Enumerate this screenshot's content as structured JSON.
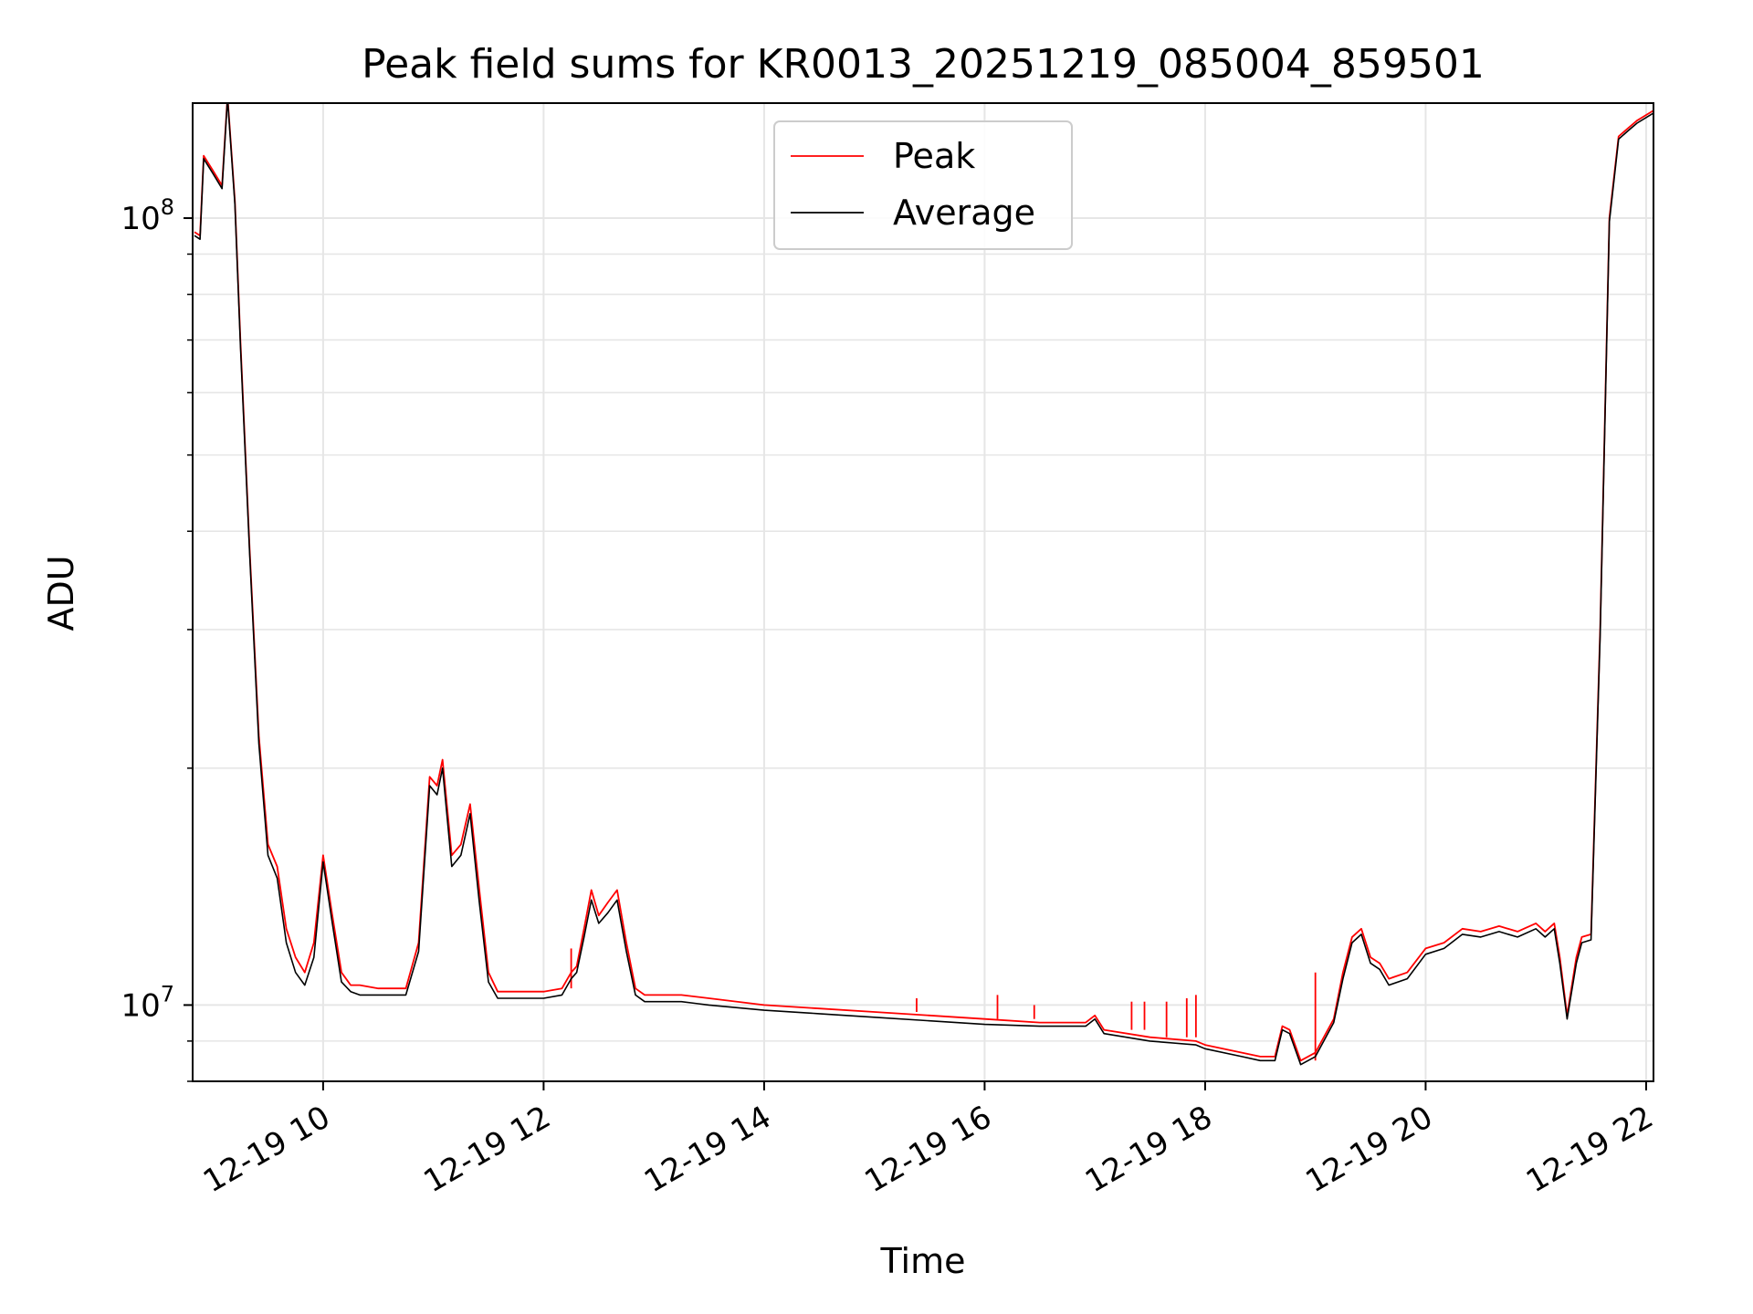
{
  "chart_data": {
    "type": "line",
    "title": "Peak field sums for KR0013_20251219_085004_859501",
    "xlabel": "Time",
    "ylabel": "ADU",
    "y_scale": "log",
    "ylim": [
      8000000,
      140000000
    ],
    "xlim": [
      "2025-12-19 08:49",
      "2025-12-19 22:04"
    ],
    "x_ticks": [
      "2025-12-19 10:00",
      "2025-12-19 12:00",
      "2025-12-19 14:00",
      "2025-12-19 16:00",
      "2025-12-19 18:00",
      "2025-12-19 20:00",
      "2025-12-19 22:00"
    ],
    "x_tick_labels": [
      "12-19 10",
      "12-19 12",
      "12-19 14",
      "12-19 16",
      "12-19 18",
      "12-19 20",
      "12-19 22"
    ],
    "y_ticks": [
      10000000,
      100000000
    ],
    "y_tick_labels": [
      {
        "base": "10",
        "exp": "7"
      },
      {
        "base": "10",
        "exp": "8"
      }
    ],
    "grid": true,
    "legend_position": "upper center",
    "series": [
      {
        "name": "Peak",
        "color": "#ff0000",
        "x": [
          "2025-12-19 08:50",
          "2025-12-19 08:53",
          "2025-12-19 08:55",
          "2025-12-19 09:00",
          "2025-12-19 09:05",
          "2025-12-19 09:08",
          "2025-12-19 09:12",
          "2025-12-19 09:15",
          "2025-12-19 09:20",
          "2025-12-19 09:25",
          "2025-12-19 09:30",
          "2025-12-19 09:35",
          "2025-12-19 09:40",
          "2025-12-19 09:45",
          "2025-12-19 09:50",
          "2025-12-19 09:55",
          "2025-12-19 10:00",
          "2025-12-19 10:05",
          "2025-12-19 10:10",
          "2025-12-19 10:15",
          "2025-12-19 10:20",
          "2025-12-19 10:30",
          "2025-12-19 10:45",
          "2025-12-19 10:52",
          "2025-12-19 10:58",
          "2025-12-19 11:02",
          "2025-12-19 11:05",
          "2025-12-19 11:10",
          "2025-12-19 11:15",
          "2025-12-19 11:20",
          "2025-12-19 11:25",
          "2025-12-19 11:30",
          "2025-12-19 11:35",
          "2025-12-19 11:40",
          "2025-12-19 11:45",
          "2025-12-19 11:50",
          "2025-12-19 12:00",
          "2025-12-19 12:10",
          "2025-12-19 12:15",
          "2025-12-19 12:18",
          "2025-12-19 12:22",
          "2025-12-19 12:26",
          "2025-12-19 12:30",
          "2025-12-19 12:35",
          "2025-12-19 12:40",
          "2025-12-19 12:45",
          "2025-12-19 12:50",
          "2025-12-19 12:55",
          "2025-12-19 13:00",
          "2025-12-19 13:05",
          "2025-12-19 13:15",
          "2025-12-19 13:30",
          "2025-12-19 14:00",
          "2025-12-19 14:30",
          "2025-12-19 15:00",
          "2025-12-19 15:30",
          "2025-12-19 16:00",
          "2025-12-19 16:30",
          "2025-12-19 16:55",
          "2025-12-19 17:00",
          "2025-12-19 17:05",
          "2025-12-19 17:30",
          "2025-12-19 17:55",
          "2025-12-19 18:00",
          "2025-12-19 18:20",
          "2025-12-19 18:30",
          "2025-12-19 18:38",
          "2025-12-19 18:42",
          "2025-12-19 18:46",
          "2025-12-19 18:52",
          "2025-12-19 19:00",
          "2025-12-19 19:10",
          "2025-12-19 19:15",
          "2025-12-19 19:20",
          "2025-12-19 19:25",
          "2025-12-19 19:30",
          "2025-12-19 19:35",
          "2025-12-19 19:40",
          "2025-12-19 19:50",
          "2025-12-19 20:00",
          "2025-12-19 20:10",
          "2025-12-19 20:20",
          "2025-12-19 20:30",
          "2025-12-19 20:40",
          "2025-12-19 20:50",
          "2025-12-19 21:00",
          "2025-12-19 21:05",
          "2025-12-19 21:10",
          "2025-12-19 21:13",
          "2025-12-19 21:17",
          "2025-12-19 21:22",
          "2025-12-19 21:25",
          "2025-12-19 21:30",
          "2025-12-19 21:35",
          "2025-12-19 21:40",
          "2025-12-19 21:45",
          "2025-12-19 21:50",
          "2025-12-19 21:55",
          "2025-12-19 22:04"
        ],
        "values": [
          96000000,
          95000000,
          120000000,
          115000000,
          110000000,
          143000000,
          105000000,
          70000000,
          38000000,
          22000000,
          16000000,
          15000000,
          12500000,
          11500000,
          11000000,
          12000000,
          15500000,
          13000000,
          11000000,
          10600000,
          10600000,
          10500000,
          10500000,
          12000000,
          19500000,
          19000000,
          20500000,
          15500000,
          16000000,
          18000000,
          14000000,
          11000000,
          10400000,
          10400000,
          10400000,
          10400000,
          10400000,
          10500000,
          11000000,
          11200000,
          12500000,
          14000000,
          13000000,
          13500000,
          14000000,
          12000000,
          10500000,
          10300000,
          10300000,
          10300000,
          10300000,
          10200000,
          10000000,
          9900000,
          9800000,
          9700000,
          9600000,
          9500000,
          9500000,
          9700000,
          9300000,
          9100000,
          9000000,
          8900000,
          8700000,
          8600000,
          8600000,
          9400000,
          9300000,
          8500000,
          8700000,
          9600000,
          11000000,
          12200000,
          12500000,
          11500000,
          11300000,
          10800000,
          11000000,
          11800000,
          12000000,
          12500000,
          12400000,
          12600000,
          12400000,
          12700000,
          12400000,
          12700000,
          11500000,
          9700000,
          11500000,
          12200000,
          12300000,
          30000000,
          100000000,
          127000000,
          130000000,
          133000000,
          137000000
        ],
        "spikes": [
          {
            "x": "2025-12-19 12:15",
            "value": 11800000
          },
          {
            "x": "2025-12-19 15:23",
            "value": 10200000
          },
          {
            "x": "2025-12-19 16:07",
            "value": 10300000
          },
          {
            "x": "2025-12-19 16:27",
            "value": 10000000
          },
          {
            "x": "2025-12-19 17:20",
            "value": 10100000
          },
          {
            "x": "2025-12-19 17:27",
            "value": 10100000
          },
          {
            "x": "2025-12-19 17:39",
            "value": 10100000
          },
          {
            "x": "2025-12-19 17:50",
            "value": 10200000
          },
          {
            "x": "2025-12-19 17:55",
            "value": 10300000
          },
          {
            "x": "2025-12-19 19:00",
            "value": 11000000
          }
        ]
      },
      {
        "name": "Average",
        "color": "#000000",
        "x": [
          "2025-12-19 08:50",
          "2025-12-19 08:53",
          "2025-12-19 08:55",
          "2025-12-19 09:00",
          "2025-12-19 09:05",
          "2025-12-19 09:08",
          "2025-12-19 09:12",
          "2025-12-19 09:15",
          "2025-12-19 09:20",
          "2025-12-19 09:25",
          "2025-12-19 09:30",
          "2025-12-19 09:35",
          "2025-12-19 09:40",
          "2025-12-19 09:45",
          "2025-12-19 09:50",
          "2025-12-19 09:55",
          "2025-12-19 10:00",
          "2025-12-19 10:05",
          "2025-12-19 10:10",
          "2025-12-19 10:15",
          "2025-12-19 10:20",
          "2025-12-19 10:30",
          "2025-12-19 10:45",
          "2025-12-19 10:52",
          "2025-12-19 10:58",
          "2025-12-19 11:02",
          "2025-12-19 11:05",
          "2025-12-19 11:10",
          "2025-12-19 11:15",
          "2025-12-19 11:20",
          "2025-12-19 11:25",
          "2025-12-19 11:30",
          "2025-12-19 11:35",
          "2025-12-19 11:40",
          "2025-12-19 11:45",
          "2025-12-19 11:50",
          "2025-12-19 12:00",
          "2025-12-19 12:10",
          "2025-12-19 12:15",
          "2025-12-19 12:18",
          "2025-12-19 12:22",
          "2025-12-19 12:26",
          "2025-12-19 12:30",
          "2025-12-19 12:35",
          "2025-12-19 12:40",
          "2025-12-19 12:45",
          "2025-12-19 12:50",
          "2025-12-19 12:55",
          "2025-12-19 13:00",
          "2025-12-19 13:05",
          "2025-12-19 13:15",
          "2025-12-19 13:30",
          "2025-12-19 14:00",
          "2025-12-19 14:30",
          "2025-12-19 15:00",
          "2025-12-19 15:30",
          "2025-12-19 16:00",
          "2025-12-19 16:30",
          "2025-12-19 16:55",
          "2025-12-19 17:00",
          "2025-12-19 17:05",
          "2025-12-19 17:30",
          "2025-12-19 17:55",
          "2025-12-19 18:00",
          "2025-12-19 18:20",
          "2025-12-19 18:30",
          "2025-12-19 18:38",
          "2025-12-19 18:42",
          "2025-12-19 18:46",
          "2025-12-19 18:52",
          "2025-12-19 19:00",
          "2025-12-19 19:10",
          "2025-12-19 19:15",
          "2025-12-19 19:20",
          "2025-12-19 19:25",
          "2025-12-19 19:30",
          "2025-12-19 19:35",
          "2025-12-19 19:40",
          "2025-12-19 19:50",
          "2025-12-19 20:00",
          "2025-12-19 20:10",
          "2025-12-19 20:20",
          "2025-12-19 20:30",
          "2025-12-19 20:40",
          "2025-12-19 20:50",
          "2025-12-19 21:00",
          "2025-12-19 21:05",
          "2025-12-19 21:10",
          "2025-12-19 21:13",
          "2025-12-19 21:17",
          "2025-12-19 21:22",
          "2025-12-19 21:25",
          "2025-12-19 21:30",
          "2025-12-19 21:35",
          "2025-12-19 21:40",
          "2025-12-19 21:45",
          "2025-12-19 21:50",
          "2025-12-19 21:55",
          "2025-12-19 22:04"
        ],
        "values": [
          95000000,
          94000000,
          119000000,
          114000000,
          109000000,
          142000000,
          104000000,
          69000000,
          37500000,
          21500000,
          15500000,
          14500000,
          12000000,
          11000000,
          10600000,
          11500000,
          15200000,
          12700000,
          10700000,
          10400000,
          10300000,
          10300000,
          10300000,
          11700000,
          19000000,
          18500000,
          20000000,
          15000000,
          15500000,
          17500000,
          13500000,
          10700000,
          10200000,
          10200000,
          10200000,
          10200000,
          10200000,
          10300000,
          10800000,
          11000000,
          12200000,
          13600000,
          12700000,
          13100000,
          13600000,
          11700000,
          10300000,
          10100000,
          10100000,
          10100000,
          10100000,
          10000000,
          9850000,
          9750000,
          9650000,
          9550000,
          9450000,
          9400000,
          9400000,
          9600000,
          9200000,
          9000000,
          8900000,
          8800000,
          8600000,
          8500000,
          8500000,
          9300000,
          9200000,
          8400000,
          8600000,
          9500000,
          10800000,
          12000000,
          12300000,
          11300000,
          11100000,
          10600000,
          10800000,
          11600000,
          11800000,
          12300000,
          12200000,
          12400000,
          12200000,
          12500000,
          12200000,
          12500000,
          11300000,
          9600000,
          11300000,
          12000000,
          12100000,
          29500000,
          99000000,
          126000000,
          129000000,
          132000000,
          136000000
        ]
      }
    ]
  }
}
